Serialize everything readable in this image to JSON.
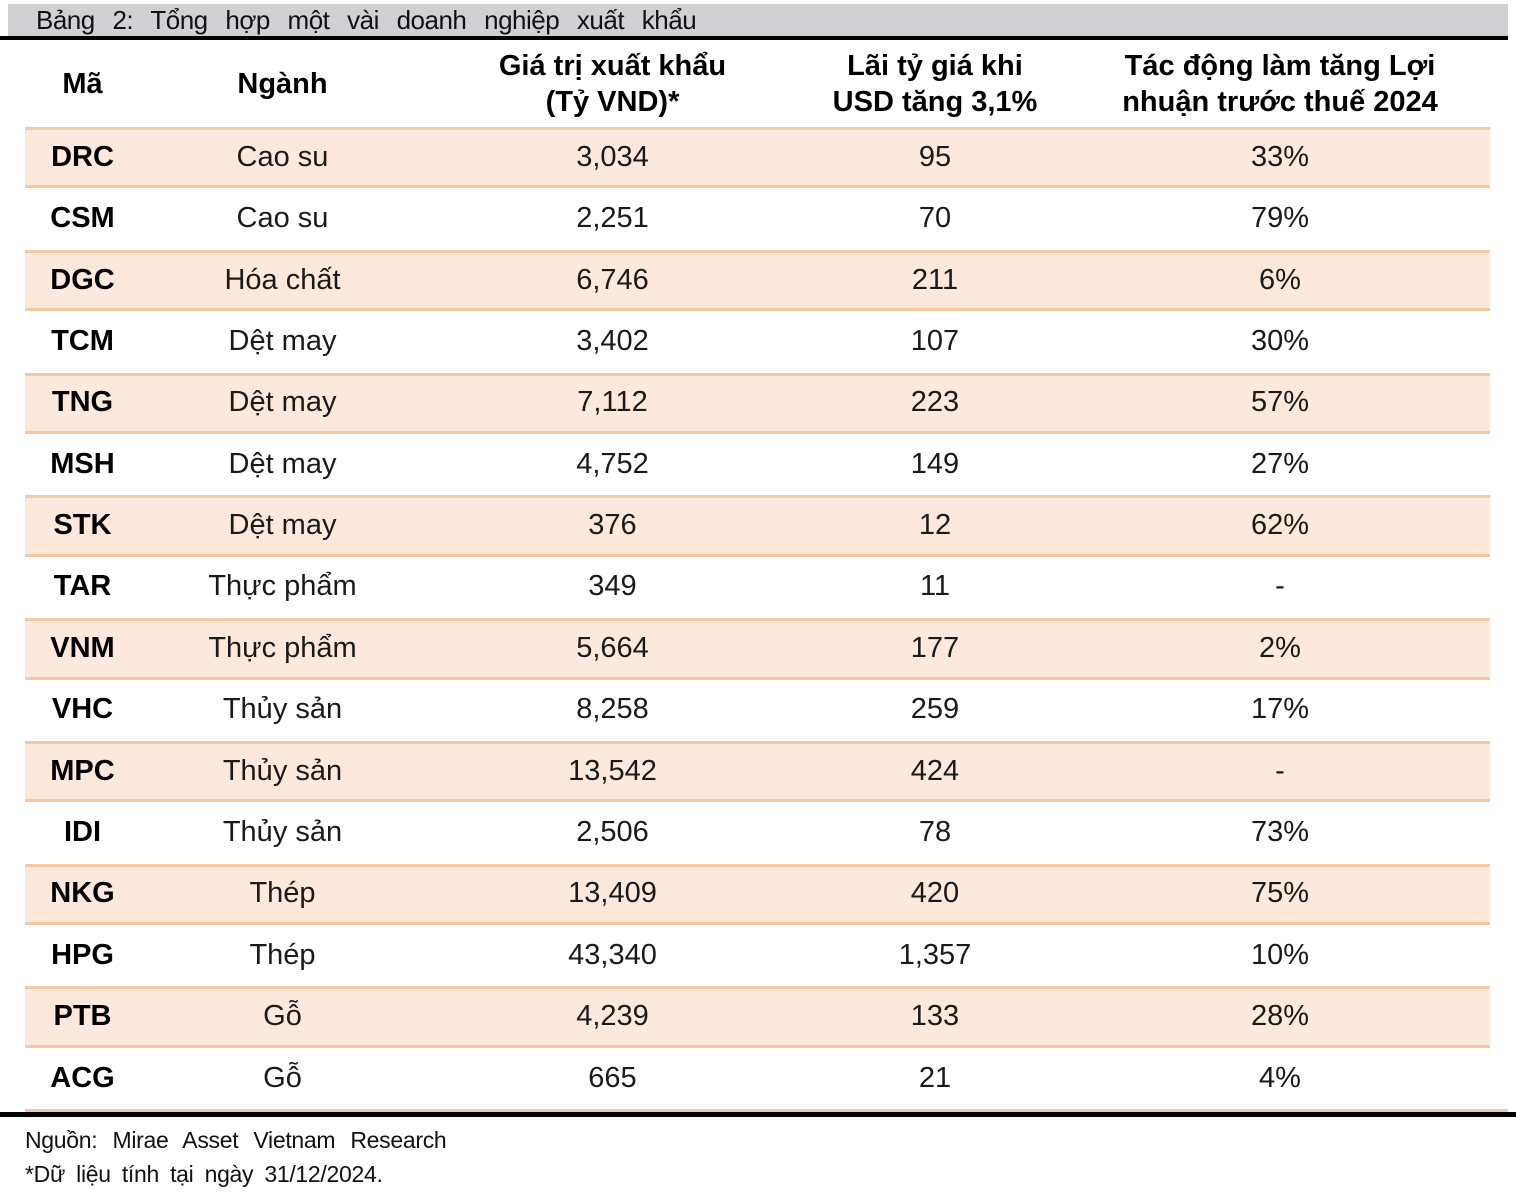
{
  "title": "Bảng 2: Tổng hợp một vài doanh nghiệp xuất khẩu",
  "table": {
    "headers": [
      {
        "lines": [
          "Mã"
        ]
      },
      {
        "lines": [
          "Ngành"
        ]
      },
      {
        "lines": [
          "Giá trị xuất khẩu",
          "(Tỷ VND)*"
        ]
      },
      {
        "lines": [
          "Lãi tỷ giá khi",
          "USD tăng 3,1%"
        ]
      },
      {
        "lines": [
          "Tác động làm tăng Lợi",
          "nhuận trước thuế 2024"
        ]
      }
    ],
    "rows": [
      {
        "ticker": "DRC",
        "sector": "Cao su",
        "export_value": "3,034",
        "fx_gain": "95",
        "profit_impact": "33%"
      },
      {
        "ticker": "CSM",
        "sector": "Cao su",
        "export_value": "2,251",
        "fx_gain": "70",
        "profit_impact": "79%"
      },
      {
        "ticker": "DGC",
        "sector": "Hóa chất",
        "export_value": "6,746",
        "fx_gain": "211",
        "profit_impact": "6%"
      },
      {
        "ticker": "TCM",
        "sector": "Dệt may",
        "export_value": "3,402",
        "fx_gain": "107",
        "profit_impact": "30%"
      },
      {
        "ticker": "TNG",
        "sector": "Dệt may",
        "export_value": "7,112",
        "fx_gain": "223",
        "profit_impact": "57%"
      },
      {
        "ticker": "MSH",
        "sector": "Dệt may",
        "export_value": "4,752",
        "fx_gain": "149",
        "profit_impact": "27%"
      },
      {
        "ticker": "STK",
        "sector": "Dệt may",
        "export_value": "376",
        "fx_gain": "12",
        "profit_impact": "62%"
      },
      {
        "ticker": "TAR",
        "sector": "Thực phẩm",
        "export_value": "349",
        "fx_gain": "11",
        "profit_impact": "-"
      },
      {
        "ticker": "VNM",
        "sector": "Thực phẩm",
        "export_value": "5,664",
        "fx_gain": "177",
        "profit_impact": "2%"
      },
      {
        "ticker": "VHC",
        "sector": "Thủy sản",
        "export_value": "8,258",
        "fx_gain": "259",
        "profit_impact": "17%"
      },
      {
        "ticker": "MPC",
        "sector": "Thủy sản",
        "export_value": "13,542",
        "fx_gain": "424",
        "profit_impact": "-"
      },
      {
        "ticker": "IDI",
        "sector": "Thủy sản",
        "export_value": "2,506",
        "fx_gain": "78",
        "profit_impact": "73%"
      },
      {
        "ticker": "NKG",
        "sector": "Thép",
        "export_value": "13,409",
        "fx_gain": "420",
        "profit_impact": "75%"
      },
      {
        "ticker": "HPG",
        "sector": "Thép",
        "export_value": "43,340",
        "fx_gain": "1,357",
        "profit_impact": "10%"
      },
      {
        "ticker": "PTB",
        "sector": "Gỗ",
        "export_value": "4,239",
        "fx_gain": "133",
        "profit_impact": "28%"
      },
      {
        "ticker": "ACG",
        "sector": "Gỗ",
        "export_value": "665",
        "fx_gain": "21",
        "profit_impact": "4%"
      }
    ]
  },
  "footer": {
    "source": "Nguồn: Mirae Asset Vietnam Research",
    "note": "*Dữ liệu tính tại ngày 31/12/2024."
  },
  "colors": {
    "stripe_fill": "#fce9db",
    "stripe_border": "#f6c9a2",
    "titlebar_gray": "#d1d1d3",
    "rule_black": "#000000"
  }
}
